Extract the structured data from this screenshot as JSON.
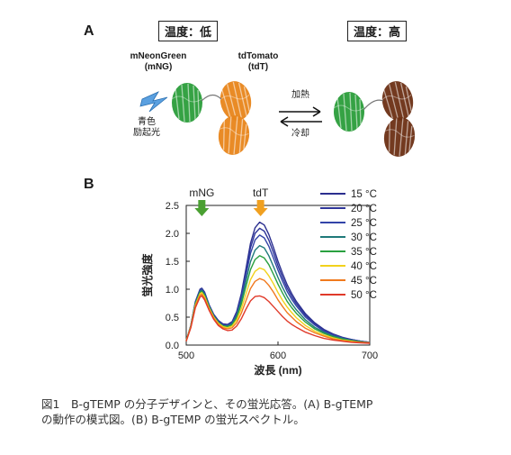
{
  "panelA": {
    "letter": "A",
    "temp_low": "温度：低",
    "temp_high": "温度：高",
    "mng_name": "mNeonGreen",
    "mng_abbr": "(mNG)",
    "tdt_name": "tdTomato",
    "tdt_abbr": "(tdT)",
    "excitation_line1": "青色",
    "excitation_line2": "励起光",
    "heat_label": "加熱",
    "cool_label": "冷却",
    "colors": {
      "mng": "#2a9d3a",
      "tdt_low": "#e8851a",
      "tdt_high": "#6b2f14",
      "light": "#5aa0e0"
    }
  },
  "panelB": {
    "letter": "B",
    "arrow_mng": "mNG",
    "arrow_tdt": "tdT"
  },
  "chart_data": {
    "type": "line",
    "xlabel": "波長 (nm)",
    "ylabel": "蛍光強度",
    "xlim": [
      500,
      700
    ],
    "ylim": [
      0,
      2.5
    ],
    "xticks": [
      500,
      600,
      700
    ],
    "yticks": [
      0.0,
      0.5,
      1.0,
      1.5,
      2.0,
      2.5
    ],
    "ytick_labels": [
      "0.0",
      "0.5",
      "1.0",
      "1.5",
      "2.0",
      "2.5"
    ],
    "xtick_labels": [
      "500",
      "600",
      "700"
    ],
    "grid": false,
    "legend_position": "right",
    "annotations": [
      {
        "label": "mNG",
        "x": 517,
        "color": "#4aa032"
      },
      {
        "label": "tdT",
        "x": 581,
        "color": "#f0a020"
      }
    ],
    "x": [
      500,
      505,
      510,
      515,
      517,
      520,
      525,
      530,
      535,
      540,
      545,
      550,
      555,
      560,
      565,
      570,
      575,
      580,
      585,
      590,
      595,
      600,
      605,
      610,
      615,
      620,
      630,
      640,
      650,
      660,
      670,
      680,
      690,
      700
    ],
    "series": [
      {
        "name": "15 °C",
        "color": "#2b2f8f",
        "values": [
          0.08,
          0.35,
          0.78,
          1.0,
          1.02,
          0.95,
          0.72,
          0.55,
          0.44,
          0.38,
          0.37,
          0.42,
          0.6,
          0.92,
          1.36,
          1.82,
          2.1,
          2.2,
          2.15,
          1.98,
          1.75,
          1.5,
          1.28,
          1.08,
          0.92,
          0.78,
          0.56,
          0.4,
          0.28,
          0.2,
          0.14,
          0.1,
          0.07,
          0.05
        ]
      },
      {
        "name": "20 °C",
        "color": "#2e3599",
        "values": [
          0.08,
          0.35,
          0.77,
          0.99,
          1.01,
          0.94,
          0.71,
          0.54,
          0.43,
          0.37,
          0.36,
          0.41,
          0.58,
          0.89,
          1.31,
          1.74,
          2.0,
          2.09,
          2.04,
          1.88,
          1.66,
          1.42,
          1.21,
          1.02,
          0.87,
          0.74,
          0.53,
          0.38,
          0.27,
          0.19,
          0.13,
          0.1,
          0.07,
          0.05
        ]
      },
      {
        "name": "25 °C",
        "color": "#3344a8",
        "values": [
          0.08,
          0.34,
          0.76,
          0.98,
          1.0,
          0.93,
          0.7,
          0.53,
          0.42,
          0.36,
          0.35,
          0.4,
          0.56,
          0.85,
          1.24,
          1.64,
          1.88,
          1.97,
          1.92,
          1.77,
          1.56,
          1.34,
          1.14,
          0.96,
          0.82,
          0.7,
          0.5,
          0.36,
          0.25,
          0.18,
          0.13,
          0.09,
          0.07,
          0.05
        ]
      },
      {
        "name": "30 °C",
        "color": "#1f7a7a",
        "values": [
          0.08,
          0.34,
          0.75,
          0.96,
          0.98,
          0.91,
          0.69,
          0.52,
          0.41,
          0.35,
          0.34,
          0.38,
          0.52,
          0.79,
          1.14,
          1.49,
          1.7,
          1.78,
          1.74,
          1.6,
          1.41,
          1.21,
          1.03,
          0.87,
          0.74,
          0.63,
          0.45,
          0.32,
          0.23,
          0.16,
          0.12,
          0.08,
          0.06,
          0.04
        ]
      },
      {
        "name": "35 °C",
        "color": "#2aa040",
        "values": [
          0.08,
          0.33,
          0.74,
          0.94,
          0.96,
          0.89,
          0.68,
          0.51,
          0.4,
          0.34,
          0.33,
          0.36,
          0.49,
          0.73,
          1.04,
          1.35,
          1.53,
          1.6,
          1.56,
          1.44,
          1.27,
          1.09,
          0.93,
          0.78,
          0.67,
          0.57,
          0.41,
          0.29,
          0.21,
          0.15,
          0.11,
          0.08,
          0.06,
          0.04
        ]
      },
      {
        "name": "40 °C",
        "color": "#f2d21c",
        "values": [
          0.08,
          0.33,
          0.72,
          0.92,
          0.94,
          0.87,
          0.66,
          0.5,
          0.39,
          0.33,
          0.31,
          0.34,
          0.45,
          0.65,
          0.91,
          1.17,
          1.32,
          1.38,
          1.35,
          1.24,
          1.1,
          0.94,
          0.8,
          0.68,
          0.58,
          0.49,
          0.35,
          0.25,
          0.18,
          0.13,
          0.09,
          0.07,
          0.05,
          0.04
        ]
      },
      {
        "name": "45 °C",
        "color": "#f07a1e",
        "values": [
          0.07,
          0.32,
          0.7,
          0.89,
          0.91,
          0.84,
          0.64,
          0.48,
          0.37,
          0.31,
          0.29,
          0.31,
          0.4,
          0.57,
          0.79,
          1.01,
          1.14,
          1.19,
          1.16,
          1.07,
          0.95,
          0.81,
          0.69,
          0.58,
          0.5,
          0.42,
          0.3,
          0.22,
          0.16,
          0.11,
          0.08,
          0.06,
          0.05,
          0.04
        ]
      },
      {
        "name": "50 °C",
        "color": "#e03a2a",
        "values": [
          0.07,
          0.31,
          0.67,
          0.86,
          0.88,
          0.81,
          0.62,
          0.46,
          0.35,
          0.29,
          0.26,
          0.27,
          0.34,
          0.47,
          0.64,
          0.79,
          0.87,
          0.88,
          0.85,
          0.78,
          0.69,
          0.6,
          0.51,
          0.43,
          0.37,
          0.32,
          0.23,
          0.17,
          0.12,
          0.09,
          0.07,
          0.05,
          0.04,
          0.03
        ]
      }
    ]
  },
  "caption": {
    "line1": "図1　B-gTEMP の分子デザインと、その蛍光応答。(A) B-gTEMP",
    "line2": "の動作の模式図。(B) B-gTEMP の蛍光スペクトル。"
  }
}
